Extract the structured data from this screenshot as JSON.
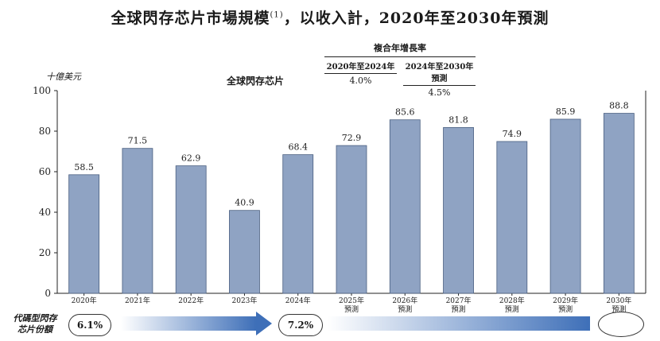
{
  "title": "全球閃存芯片市場規模",
  "title_note": "(1)",
  "title_suffix": "，以收入計，2020年至2030年預測",
  "cagr": {
    "header": "複合年增長率",
    "columns": [
      {
        "label": "2020年至2024年",
        "value": "4.0%"
      },
      {
        "label": "2024年至2030年預測",
        "value": "4.5%"
      }
    ]
  },
  "share": {
    "label_line1": "代碼型閃存",
    "label_line2": "芯片份額",
    "value_2020": "6.1%",
    "value_2024": "7.2%"
  },
  "colors": {
    "bar": "#8fa3c3",
    "bar_stroke": "#4a5f80",
    "arrow": "#3e6fb8"
  },
  "chart_data": {
    "type": "bar",
    "title": "全球閃存芯片",
    "ylabel": "十億美元",
    "ylim": [
      0,
      100
    ],
    "yticks": [
      0,
      20,
      40,
      60,
      80,
      100
    ],
    "grid": false,
    "categories": [
      [
        "2020年"
      ],
      [
        "2021年"
      ],
      [
        "2022年"
      ],
      [
        "2023年"
      ],
      [
        "2024年"
      ],
      [
        "2025年",
        "預測"
      ],
      [
        "2026年",
        "預測"
      ],
      [
        "2027年",
        "預測"
      ],
      [
        "2028年",
        "預測"
      ],
      [
        "2029年",
        "預測"
      ],
      [
        "2030年",
        "預測"
      ]
    ],
    "values": [
      58.5,
      71.5,
      62.9,
      40.9,
      68.4,
      72.9,
      85.6,
      81.8,
      74.9,
      85.9,
      88.8
    ]
  }
}
